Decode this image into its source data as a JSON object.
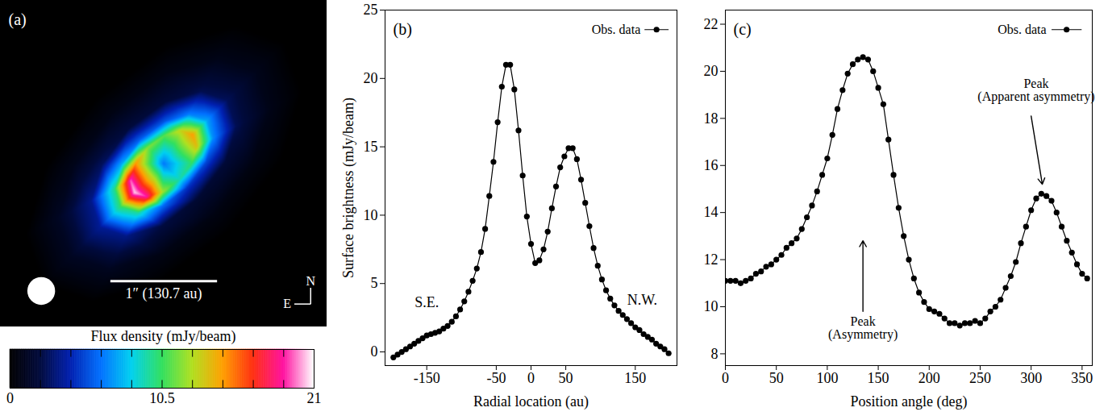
{
  "chart_data": [
    {
      "type": "heatmap",
      "panel": "(a)",
      "tick_labels": false,
      "xlim": [
        -200,
        200
      ],
      "ylim": [
        -200,
        200
      ],
      "x": [
        0,
        17.7,
        10.5,
        0.4,
        -9.7,
        -17.3,
        -20.2,
        -17.7,
        -10.5,
        -0.4,
        9.7,
        17.3,
        20.2,
        35.4,
        20.9,
        0.9,
        -19.5,
        -34.5,
        -40.4,
        -35.4,
        -20.9,
        -0.9,
        19.5,
        34.5,
        40.4,
        53.0,
        31.4,
        1.3,
        -29.2,
        -51.8,
        -60.5,
        -53.0,
        -31.4,
        -1.3,
        29.2,
        51.8,
        60.5,
        77.8,
        46.0,
        1.9,
        -42.8,
        -75.9,
        -88.8,
        -77.8,
        -46.0,
        -1.9,
        42.8,
        75.9,
        88.8,
        113.1,
        66.9,
        2.7,
        -62.2,
        -110.4,
        -129.1,
        -113.1,
        -66.9,
        -2.7,
        62.2,
        110.4,
        129.1,
        148.5,
        87.8,
        3.6,
        -81.7,
        -144.9,
        -169.5,
        -148.5,
        -87.8,
        -3.6,
        81.7,
        144.9,
        169.5,
        -200,
        200,
        -200,
        200
      ],
      "y": [
        0,
        17.7,
        20.2,
        17.3,
        9.7,
        -0.4,
        -10.5,
        -17.7,
        -20.2,
        -17.3,
        -9.7,
        0.4,
        10.5,
        35.4,
        40.4,
        34.5,
        19.5,
        -0.9,
        -20.9,
        -35.4,
        -40.4,
        -34.5,
        -19.5,
        0.9,
        20.9,
        53.0,
        60.5,
        51.8,
        29.2,
        -1.3,
        -31.4,
        -53.0,
        -60.5,
        -51.8,
        -29.2,
        1.3,
        31.4,
        77.8,
        88.8,
        75.9,
        42.8,
        -1.9,
        -46.0,
        -77.8,
        -88.8,
        -75.9,
        -42.8,
        1.9,
        46.0,
        113.1,
        129.1,
        110.4,
        62.2,
        -2.7,
        -66.9,
        -113.1,
        -129.1,
        -110.4,
        -62.2,
        2.7,
        66.9,
        148.5,
        169.5,
        144.9,
        81.7,
        -3.6,
        -87.8,
        -148.5,
        -169.5,
        -144.9,
        -81.7,
        3.6,
        87.8,
        -200,
        -200,
        200,
        200
      ],
      "values": [
        6.5,
        10.6,
        9.8,
        8.8,
        9.2,
        10.8,
        13.1,
        13.6,
        12.8,
        9.4,
        7.9,
        8.5,
        10.1,
        14.7,
        13.1,
        11.1,
        11.8,
        15.1,
        19.6,
        20.6,
        19.0,
        12.3,
        9.3,
        10.4,
        13.7,
        7.4,
        6.6,
        5.6,
        5.9,
        7.6,
        9.8,
        10.3,
        9.5,
        6.2,
        4.7,
        5.2,
        6.9,
        2.6,
        2.4,
        2.0,
        2.1,
        2.7,
        3.5,
        3.7,
        3.4,
        2.2,
        1.7,
        1.9,
        2.5,
        0.9,
        0.8,
        0.7,
        0.7,
        0.9,
        1.2,
        1.2,
        1.1,
        0.7,
        0.6,
        0.6,
        0.8,
        0,
        0,
        0,
        0,
        0,
        0,
        0,
        0,
        0,
        0,
        0,
        0,
        0,
        0,
        0,
        0
      ],
      "colorbar": {
        "label": "Flux density (mJy/beam)",
        "range": [
          0,
          21
        ],
        "ticks": [
          0,
          10.5,
          21
        ],
        "minor_ticks": [
          2.1,
          4.2,
          6.3,
          8.4,
          12.6,
          14.7,
          16.8,
          18.9
        ],
        "colors": [
          "#000000",
          "#000a3c",
          "#0020b0",
          "#0070ff",
          "#00d0f0",
          "#30e060",
          "#b0e020",
          "#ffa000",
          "#ff3010",
          "#ff10a0",
          "#ffffff"
        ]
      },
      "beam_diameter_au": 34,
      "scale_bar": {
        "label": "1″ (130.7 au)",
        "length_au": 130.7
      },
      "compass": {
        "north": "N",
        "east": "E"
      }
    },
    {
      "type": "line",
      "panel": "(b)",
      "x_label": "Radial location (au)",
      "y_label": "Surface brightness (mJy/beam)",
      "xlim": [
        -210,
        210
      ],
      "xticks": [
        -150,
        -50,
        0,
        50,
        150
      ],
      "ylim": [
        -1,
        25
      ],
      "yticks": [
        0,
        5,
        10,
        15,
        20,
        25
      ],
      "x": [
        -198,
        -192,
        -186,
        -180,
        -174,
        -168,
        -162,
        -156,
        -150,
        -144,
        -138,
        -132,
        -126,
        -120,
        -114,
        -108,
        -102,
        -96,
        -90,
        -84,
        -78,
        -72,
        -66,
        -60,
        -54,
        -48,
        -42,
        -36,
        -30,
        -24,
        -18,
        -12,
        -6,
        0,
        6,
        12,
        18,
        24,
        30,
        36,
        42,
        48,
        54,
        60,
        66,
        72,
        78,
        84,
        90,
        96,
        102,
        108,
        114,
        120,
        126,
        132,
        138,
        144,
        150,
        156,
        162,
        168,
        174,
        180,
        186,
        192,
        198
      ],
      "series": [
        {
          "name": "Obs. data",
          "color": "#000000",
          "marker": "circle",
          "line_style": "solid",
          "values": [
            -0.4,
            -0.2,
            0.0,
            0.2,
            0.4,
            0.6,
            0.8,
            1.0,
            1.2,
            1.3,
            1.4,
            1.5,
            1.7,
            1.9,
            2.2,
            2.6,
            3.1,
            3.7,
            4.4,
            5.2,
            6.1,
            7.3,
            9.0,
            11.4,
            13.9,
            16.8,
            19.4,
            21.0,
            21.0,
            19.2,
            16.2,
            12.9,
            9.9,
            7.9,
            6.5,
            6.7,
            7.5,
            8.8,
            10.5,
            12.1,
            13.5,
            14.3,
            14.9,
            14.9,
            14.1,
            12.6,
            10.9,
            9.2,
            7.6,
            6.3,
            5.3,
            4.5,
            3.9,
            3.4,
            3.0,
            2.7,
            2.4,
            2.1,
            1.8,
            1.6,
            1.3,
            1.1,
            0.9,
            0.6,
            0.4,
            0.2,
            -0.1
          ]
        }
      ],
      "legend": "top-right",
      "annotations": [
        {
          "text": "S.E.",
          "x": -150,
          "y": 3.6
        },
        {
          "text": "N.W.",
          "x": 160,
          "y": 3.8
        }
      ]
    },
    {
      "type": "line",
      "panel": "(c)",
      "x_label": "Position angle (deg)",
      "xlim": [
        0,
        360
      ],
      "xticks": [
        0,
        50,
        100,
        150,
        200,
        250,
        300,
        350
      ],
      "ylim": [
        7.5,
        22.6
      ],
      "yticks": [
        8,
        10,
        12,
        14,
        16,
        18,
        20,
        22
      ],
      "x": [
        0,
        5,
        10,
        15,
        20,
        25,
        30,
        35,
        40,
        45,
        50,
        55,
        60,
        65,
        70,
        75,
        80,
        85,
        90,
        95,
        100,
        105,
        110,
        115,
        120,
        125,
        130,
        135,
        140,
        145,
        150,
        155,
        160,
        165,
        170,
        175,
        180,
        185,
        190,
        195,
        200,
        205,
        210,
        215,
        220,
        225,
        230,
        235,
        240,
        245,
        250,
        255,
        260,
        265,
        270,
        275,
        280,
        285,
        290,
        295,
        300,
        305,
        310,
        315,
        320,
        325,
        330,
        335,
        340,
        345,
        350,
        355
      ],
      "series": [
        {
          "name": "Obs. data",
          "color": "#000000",
          "marker": "circle",
          "line_style": "solid",
          "values": [
            11.1,
            11.1,
            11.1,
            11.0,
            11.1,
            11.2,
            11.4,
            11.5,
            11.7,
            11.8,
            12.0,
            12.2,
            12.5,
            12.7,
            12.9,
            13.3,
            13.8,
            14.3,
            14.9,
            15.6,
            16.3,
            17.3,
            18.4,
            19.2,
            19.9,
            20.3,
            20.5,
            20.6,
            20.5,
            20.0,
            19.3,
            18.6,
            17.1,
            15.6,
            14.2,
            13.0,
            12.0,
            11.2,
            10.6,
            10.2,
            9.9,
            9.8,
            9.7,
            9.5,
            9.3,
            9.3,
            9.2,
            9.3,
            9.3,
            9.4,
            9.3,
            9.5,
            9.8,
            10.0,
            10.3,
            10.8,
            11.3,
            11.9,
            12.7,
            13.4,
            14.1,
            14.6,
            14.8,
            14.7,
            14.5,
            14.0,
            13.4,
            12.8,
            12.3,
            11.8,
            11.4,
            11.2
          ]
        }
      ],
      "legend": "top-right",
      "annotations": [
        {
          "text": "Peak\n(Asymmetry)",
          "x": 135,
          "y": 9.6,
          "arrow": [
            [
              135,
              9.8
            ],
            [
              135,
              12.8
            ]
          ]
        },
        {
          "text": "Peak\n(Apparent asymmetry)",
          "x": 305,
          "y": 19.7,
          "arrow": [
            [
              300,
              18.1
            ],
            [
              311,
              15.2
            ]
          ]
        }
      ]
    }
  ]
}
